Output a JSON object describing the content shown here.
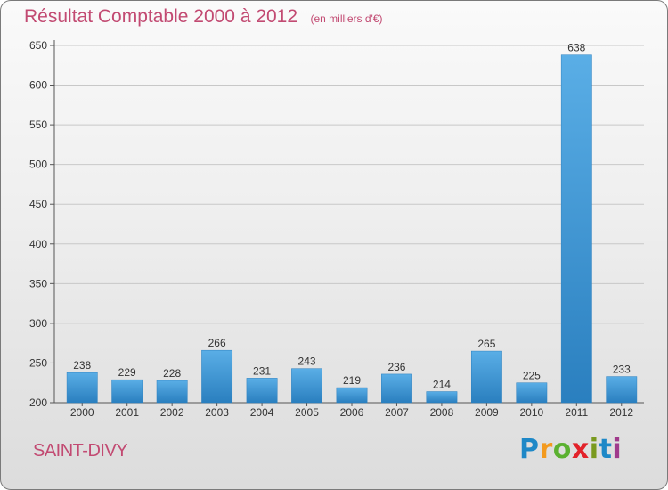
{
  "header": {
    "title": "Résultat Comptable 2000 à 2012",
    "subtitle": "(en milliers d'€)"
  },
  "footer": {
    "commune": "SAINT-DIVY",
    "logo_text": "Proxiti"
  },
  "colors": {
    "title": "#c24a72",
    "bar_top": "#5aaee6",
    "bar_bottom": "#2a7fbf",
    "grid": "#c8c8c8"
  },
  "chart_data": {
    "type": "bar",
    "title": "Résultat Comptable 2000 à 2012",
    "subtitle": "(en milliers d'€)",
    "categories": [
      "2000",
      "2001",
      "2002",
      "2003",
      "2004",
      "2005",
      "2006",
      "2007",
      "2008",
      "2009",
      "2010",
      "2011",
      "2012"
    ],
    "values": [
      238,
      229,
      228,
      266,
      231,
      243,
      219,
      236,
      214,
      265,
      225,
      638,
      233
    ],
    "ylim": [
      200,
      650
    ],
    "yticks": [
      200,
      250,
      300,
      350,
      400,
      450,
      500,
      550,
      600,
      650
    ],
    "grid": true,
    "legend": "none"
  }
}
